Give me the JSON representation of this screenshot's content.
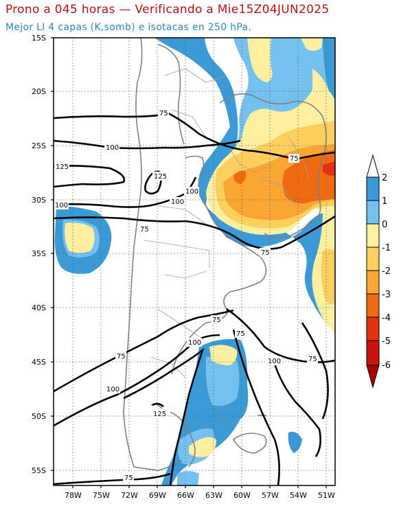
{
  "title": "Prono a 045 horas — Verificando a Mie15Z04JUN2025",
  "subtitle": "Mejor LI 4 capas (K,somb) e isotacas en 250 hPa.",
  "lat_labels": [
    "15S",
    "20S",
    "25S",
    "30S",
    "35S",
    "40S",
    "45S",
    "50S",
    "55S"
  ],
  "lon_labels": [
    "78W",
    "75W",
    "72W",
    "69W",
    "66W",
    "63W",
    "60W",
    "57W",
    "54W",
    "51W"
  ],
  "colorbar": {
    "labels": [
      "2",
      "1",
      "0",
      "-1",
      "-2",
      "-3",
      "-4",
      "-5",
      "-6"
    ],
    "colors": [
      "#ffffff",
      "#3a9ad6",
      "#74c0ef",
      "#fff0a0",
      "#ffcf5e",
      "#f9a531",
      "#f06a12",
      "#e43010",
      "#c91308",
      "#a60000"
    ]
  },
  "isotach_labels": [
    {
      "text": "75"
    },
    {
      "text": "100"
    },
    {
      "text": "125"
    },
    {
      "text": "125"
    },
    {
      "text": "100"
    },
    {
      "text": "100"
    },
    {
      "text": "100"
    },
    {
      "text": "75"
    },
    {
      "text": "75"
    },
    {
      "text": "75"
    },
    {
      "text": "75"
    },
    {
      "text": "100"
    },
    {
      "text": "75"
    },
    {
      "text": "75"
    },
    {
      "text": "100"
    },
    {
      "text": "75"
    },
    {
      "text": "100"
    },
    {
      "text": "125"
    },
    {
      "text": "75"
    }
  ]
}
